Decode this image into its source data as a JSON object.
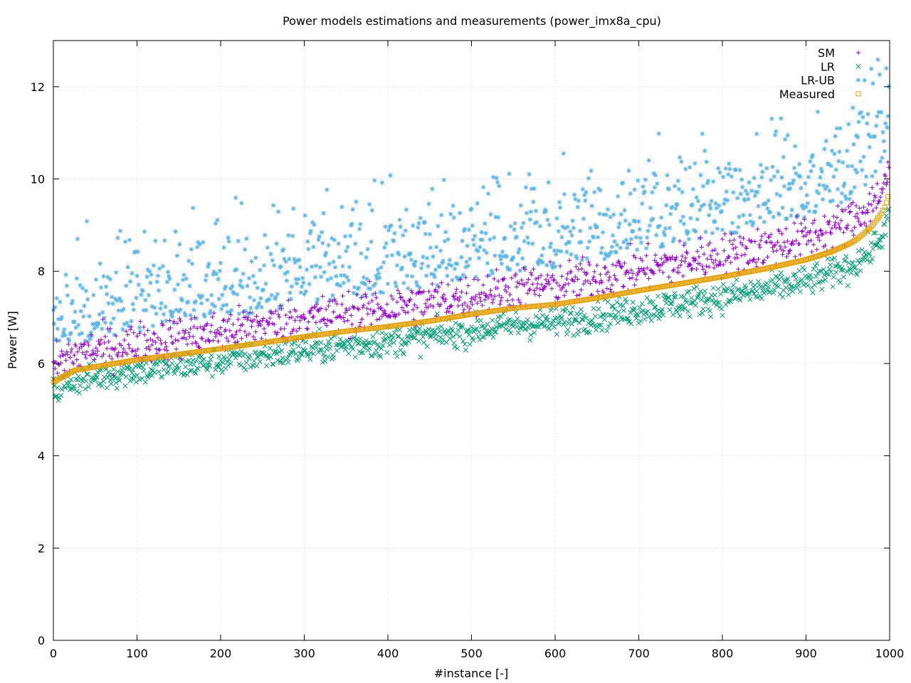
{
  "chart_data": {
    "type": "scatter",
    "title": "Power models estimations and measurements (power_imx8a_cpu)",
    "xlabel": "#instance [-]",
    "ylabel": "Power [W]",
    "xlim": [
      0,
      1000
    ],
    "ylim": [
      0,
      13
    ],
    "xticks": [
      0,
      100,
      200,
      300,
      400,
      500,
      600,
      700,
      800,
      900,
      1000
    ],
    "yticks": [
      0,
      2,
      4,
      6,
      8,
      10,
      12
    ],
    "xtick_labels": [
      "0",
      "100",
      "200",
      "300",
      "400",
      "500",
      "600",
      "700",
      "800",
      "900",
      "1000"
    ],
    "ytick_labels": [
      "0",
      "2",
      "4",
      "6",
      "8",
      "10",
      "12"
    ],
    "grid": true,
    "legend_position": "top-right",
    "instances": 1000,
    "measured_curve": {
      "x": [
        0,
        25,
        50,
        100,
        150,
        200,
        250,
        300,
        350,
        400,
        450,
        500,
        550,
        600,
        650,
        700,
        750,
        800,
        850,
        900,
        930,
        950,
        960,
        970,
        980,
        990,
        995,
        1000
      ],
      "y": [
        5.6,
        5.85,
        5.93,
        6.08,
        6.2,
        6.32,
        6.45,
        6.58,
        6.7,
        6.8,
        6.92,
        7.07,
        7.2,
        7.28,
        7.42,
        7.58,
        7.73,
        7.88,
        8.05,
        8.25,
        8.42,
        8.58,
        8.68,
        8.83,
        9.0,
        9.25,
        9.42,
        9.75
      ]
    },
    "series": [
      {
        "name": "SM",
        "marker": "+",
        "color": "#9400d3",
        "mean_offset_start": 0.35,
        "mean_offset_end": 0.5,
        "spread": 0.45
      },
      {
        "name": "LR",
        "marker": "x",
        "color": "#009e73",
        "mean_offset_start": -0.2,
        "mean_offset_end": -0.5,
        "spread": 0.32
      },
      {
        "name": "LR-UB",
        "marker": "*",
        "color": "#56b4e9",
        "mean_offset_start": 1.1,
        "mean_offset_end": 1.5,
        "spread": 1.1
      },
      {
        "name": "Measured",
        "marker": "square",
        "color": "#e69f00"
      }
    ]
  }
}
